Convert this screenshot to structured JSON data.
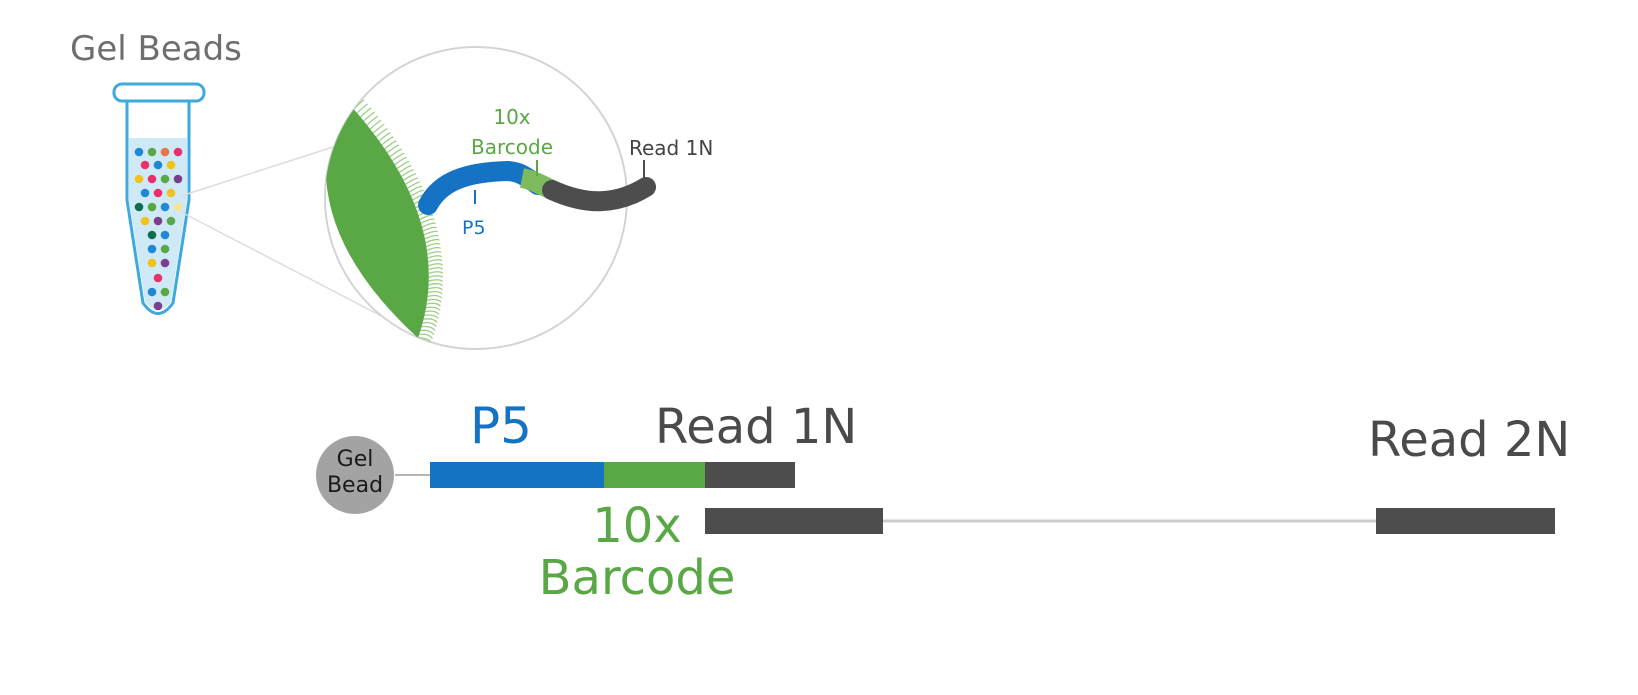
{
  "title": "Gel Beads",
  "inset": {
    "barcode_line1": "10x",
    "barcode_line2": "Barcode",
    "read1_label": "Read 1N",
    "p5_label": "P5"
  },
  "construct": {
    "bead_line1": "Gel",
    "bead_line2": "Bead",
    "p5_label": "P5",
    "read1_label": "Read 1N",
    "read2_label": "Read 2N",
    "barcode_line1": "10x",
    "barcode_line2": "Barcode"
  },
  "colors": {
    "p5_blue": "#1673c4",
    "barcode_green": "#5aa845",
    "read_gray": "#4d4d4d",
    "tube_blue": "#3da9dd",
    "bead_gray": "#a3a3a3"
  }
}
